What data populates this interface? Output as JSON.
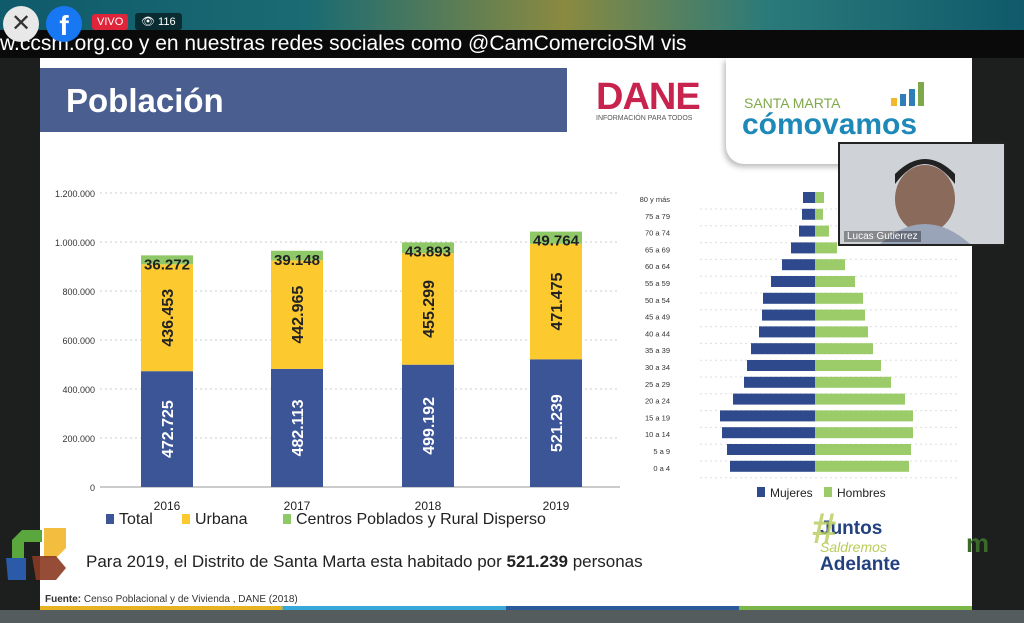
{
  "overlay": {
    "live_label": "VIVO",
    "viewers": "116",
    "ticker": "w.ccsm.org.co y en nuestras redes sociales como @CamComercioSM  vis",
    "icons": [
      "close-icon",
      "facebook-icon",
      "eye-icon"
    ]
  },
  "slide": {
    "title": "Población",
    "dane": "DANE",
    "dane_sub": "INFORMACIÓN PARA TODOS",
    "cv_top": "SANTA MARTA",
    "cv_main": "cómovamos",
    "summary_pre": "Para 2019, el Distrito de Santa Marta esta habitado por ",
    "summary_bold": "521.239",
    "summary_post": " personas",
    "source_label": "Fuente:",
    "source": " Censo Poblacional y de Vivienda , DANE (2018)",
    "juntos": [
      "Juntos",
      "Saldremos",
      "Adelante"
    ]
  },
  "camera": {
    "name": "Lucas Gutierrez"
  },
  "chart_data": [
    {
      "type": "bar",
      "stacked": true,
      "categories": [
        "2016",
        "2017",
        "2018",
        "2019"
      ],
      "series": [
        {
          "name": "Total",
          "color": "#3b5597",
          "values": [
            472725,
            482113,
            499192,
            521239
          ],
          "labels": [
            "472.725",
            "482.113",
            "499.192",
            "521.239"
          ]
        },
        {
          "name": "Urbana",
          "color": "#fcc92e",
          "values": [
            436453,
            442965,
            455299,
            471475
          ],
          "labels": [
            "436.453",
            "442.965",
            "455.299",
            "471.475"
          ]
        },
        {
          "name": "Centros Poblados y Rural Disperso",
          "color": "#8fc866",
          "values": [
            36272,
            39148,
            43893,
            49764
          ],
          "labels": [
            "36.272",
            "39.148",
            "43.893",
            "49.764"
          ]
        }
      ],
      "ylim": [
        0,
        1200000
      ],
      "yticks": [
        "0",
        "200.000",
        "400.000",
        "600.000",
        "800.000",
        "1.000.000",
        "1.200.000"
      ],
      "legend": "bottom"
    },
    {
      "type": "bar",
      "orientation": "horizontal",
      "pyramid": true,
      "categories": [
        "80 y más",
        "75 a 79",
        "70 a 74",
        "65 a 69",
        "60 a 64",
        "55 a 59",
        "50 a 54",
        "45 a 49",
        "40 a 44",
        "35 a 39",
        "30 a 34",
        "25 a 29",
        "20 a 24",
        "15 a 19",
        "10 a 14",
        "5 a 9",
        "0 a 4"
      ],
      "series": [
        {
          "name": "Mujeres",
          "color": "#2e4a8c",
          "values": [
            12,
            13,
            16,
            24,
            33,
            44,
            52,
            53,
            56,
            64,
            68,
            71,
            82,
            95,
            93,
            88,
            85
          ]
        },
        {
          "name": "Hombres",
          "color": "#9ccc6a",
          "values": [
            9,
            8,
            14,
            22,
            30,
            40,
            48,
            50,
            53,
            58,
            66,
            76,
            90,
            98,
            98,
            96,
            94
          ]
        }
      ],
      "units": "relative",
      "legend": "bottom"
    }
  ]
}
